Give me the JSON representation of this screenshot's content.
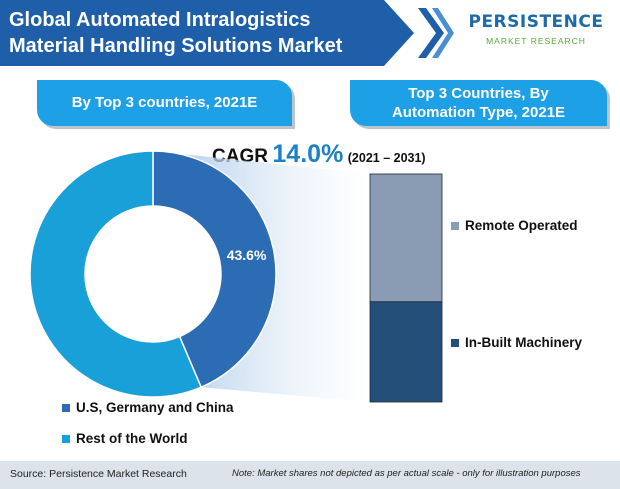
{
  "header": {
    "title_line1": "Global Automated Intralogistics",
    "title_line2": "Material Handling Solutions Market"
  },
  "logo": {
    "name": "PERSISTENCE",
    "subtitle": "MARKET RESEARCH"
  },
  "left_panel": {
    "label": "By Top 3 countries, 2021E"
  },
  "right_panel": {
    "label_line1": "Top 3 Countries,  By",
    "label_line2": "Automation Type, 2021E"
  },
  "cagr": {
    "label": "CAGR",
    "value": "14.0%",
    "period": "(2021 – 2031)"
  },
  "colors": {
    "brand_blue": "#1f5ea8",
    "pill_blue": "#1ea0e6",
    "donut_dark": "#2b6cb4",
    "donut_light": "#19a0d8",
    "bar_remote": "#8a9cb4",
    "bar_inbuilt": "#234f78"
  },
  "chart_data": [
    {
      "type": "pie",
      "variant": "donut",
      "categories": [
        "U.S, Germany and China",
        "Rest of the World"
      ],
      "values": [
        43.6,
        56.4
      ],
      "data_labels": [
        "43.6%",
        ""
      ],
      "colors": [
        "#2b6cb4",
        "#19a0d8"
      ],
      "legend_placement": "bottom-left"
    },
    {
      "type": "bar",
      "stacked": true,
      "categories": [
        "U.S, Germany and China"
      ],
      "series": [
        {
          "name": "In-Built Machinery",
          "values": [
            44
          ],
          "color": "#234f78"
        },
        {
          "name": "Remote Operated",
          "values": [
            56
          ],
          "color": "#8a9cb4"
        }
      ],
      "legend_placement": "right"
    }
  ],
  "legend_left": {
    "item1": "U.S, Germany and China",
    "item2": "Rest of the World"
  },
  "legend_right": {
    "item1": "Remote Operated",
    "item2": "In-Built Machinery"
  },
  "footer": {
    "source": "Source: Persistence Market Research",
    "note": "Note: Market shares not depicted as per actual scale - only for illustration purposes"
  }
}
